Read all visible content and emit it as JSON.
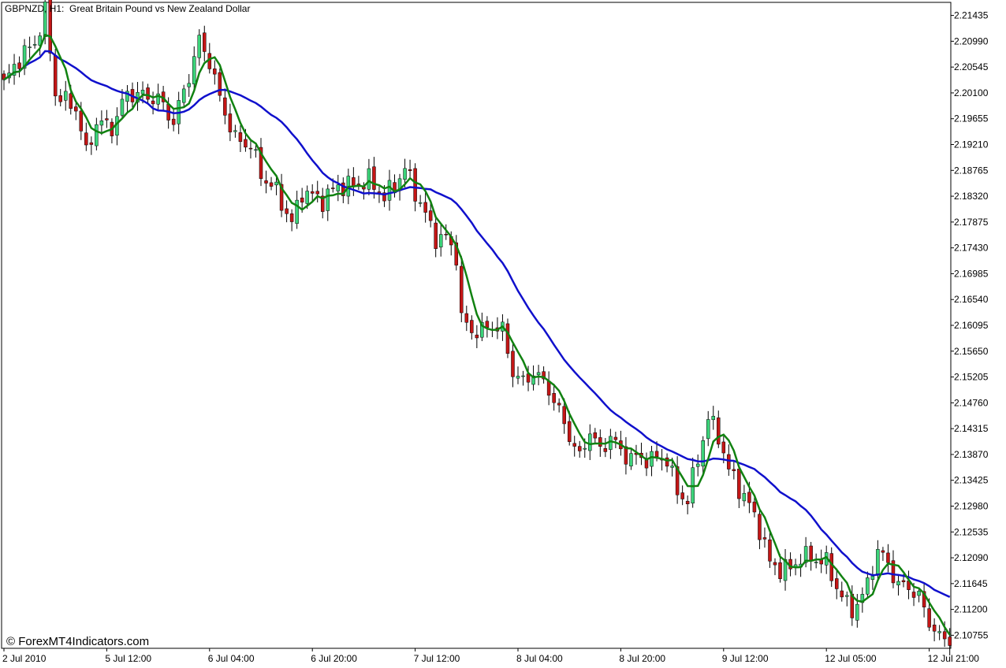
{
  "header": {
    "symbol_tf": "GBPNZD, H1:",
    "description": "Great Britain Pound vs New Zealand Dollar"
  },
  "watermark": "© ForexMT4Indicators.com",
  "colors": {
    "bull": "#3cd47a",
    "bear": "#c41616",
    "wick": "#000000",
    "ma_fast": "#118211",
    "ma_slow": "#1010cc",
    "grid": "#000000",
    "background": "#ffffff"
  },
  "chart_data": {
    "type": "candlestick",
    "ylim": [
      2.1053,
      2.2166
    ],
    "y_ticks": [
      "2.21435",
      "2.20990",
      "2.20545",
      "2.20100",
      "2.19655",
      "2.19210",
      "2.18765",
      "2.18320",
      "2.17875",
      "2.17430",
      "2.16985",
      "2.16540",
      "2.16095",
      "2.15650",
      "2.15205",
      "2.14760",
      "2.14315",
      "2.13870",
      "2.13425",
      "2.12980",
      "2.12535",
      "2.12090",
      "2.11645",
      "2.11200",
      "2.10755"
    ],
    "x_ticks": [
      {
        "label": "2 Jul 2010",
        "index": 0
      },
      {
        "label": "5 Jul 12:00",
        "index": 20
      },
      {
        "label": "6 Jul 04:00",
        "index": 40
      },
      {
        "label": "6 Jul 20:00",
        "index": 60
      },
      {
        "label": "7 Jul 12:00",
        "index": 80
      },
      {
        "label": "8 Jul 04:00",
        "index": 100
      },
      {
        "label": "8 Jul 20:00",
        "index": 120
      },
      {
        "label": "9 Jul 12:00",
        "index": 140
      },
      {
        "label": "12 Jul 05:00",
        "index": 160
      },
      {
        "label": "12 Jul 21:00",
        "index": 180
      }
    ],
    "close_anchors": [
      [
        0,
        2.2025
      ],
      [
        3,
        2.207
      ],
      [
        6,
        2.2095
      ],
      [
        8,
        2.215
      ],
      [
        10,
        2.201
      ],
      [
        12,
        2.1995
      ],
      [
        14,
        2.1985
      ],
      [
        16,
        2.1905
      ],
      [
        18,
        2.196
      ],
      [
        21,
        2.195
      ],
      [
        24,
        2.201
      ],
      [
        27,
        2.2005
      ],
      [
        30,
        2.2
      ],
      [
        33,
        2.196
      ],
      [
        36,
        2.204
      ],
      [
        38,
        2.21
      ],
      [
        40,
        2.2065
      ],
      [
        42,
        2.2
      ],
      [
        45,
        2.193
      ],
      [
        48,
        2.192
      ],
      [
        50,
        2.187
      ],
      [
        53,
        2.184
      ],
      [
        56,
        2.1785
      ],
      [
        58,
        2.184
      ],
      [
        62,
        2.1825
      ],
      [
        65,
        2.185
      ],
      [
        68,
        2.185
      ],
      [
        71,
        2.186
      ],
      [
        74,
        2.183
      ],
      [
        76,
        2.185
      ],
      [
        78,
        2.188
      ],
      [
        80,
        2.184
      ],
      [
        82,
        2.18
      ],
      [
        84,
        2.176
      ],
      [
        86,
        2.176
      ],
      [
        88,
        2.173
      ],
      [
        89,
        2.162
      ],
      [
        91,
        2.16
      ],
      [
        93,
        2.16
      ],
      [
        95,
        2.161
      ],
      [
        97,
        2.16
      ],
      [
        99,
        2.153
      ],
      [
        101,
        2.151
      ],
      [
        103,
        2.153
      ],
      [
        106,
        2.15
      ],
      [
        108,
        2.146
      ],
      [
        110,
        2.142
      ],
      [
        112,
        2.138
      ],
      [
        114,
        2.143
      ],
      [
        116,
        2.139
      ],
      [
        118,
        2.142
      ],
      [
        120,
        2.139
      ],
      [
        123,
        2.138
      ],
      [
        126,
        2.138
      ],
      [
        129,
        2.138
      ],
      [
        131,
        2.132
      ],
      [
        133,
        2.131
      ],
      [
        135,
        2.138
      ],
      [
        137,
        2.145
      ],
      [
        139,
        2.142
      ],
      [
        141,
        2.136
      ],
      [
        143,
        2.133
      ],
      [
        145,
        2.13
      ],
      [
        147,
        2.126
      ],
      [
        149,
        2.12
      ],
      [
        151,
        2.119
      ],
      [
        153,
        2.119
      ],
      [
        155,
        2.121
      ],
      [
        157,
        2.121
      ],
      [
        160,
        2.12
      ],
      [
        163,
        2.114
      ],
      [
        165,
        2.112
      ],
      [
        167,
        2.114
      ],
      [
        170,
        2.122
      ],
      [
        172,
        2.12
      ],
      [
        174,
        2.116
      ],
      [
        176,
        2.116
      ],
      [
        178,
        2.114
      ],
      [
        180,
        2.11
      ],
      [
        182,
        2.107
      ],
      [
        184,
        2.107
      ]
    ],
    "sma_fast_period": 5,
    "sma_slow_period": 21,
    "bar_count": 185
  }
}
